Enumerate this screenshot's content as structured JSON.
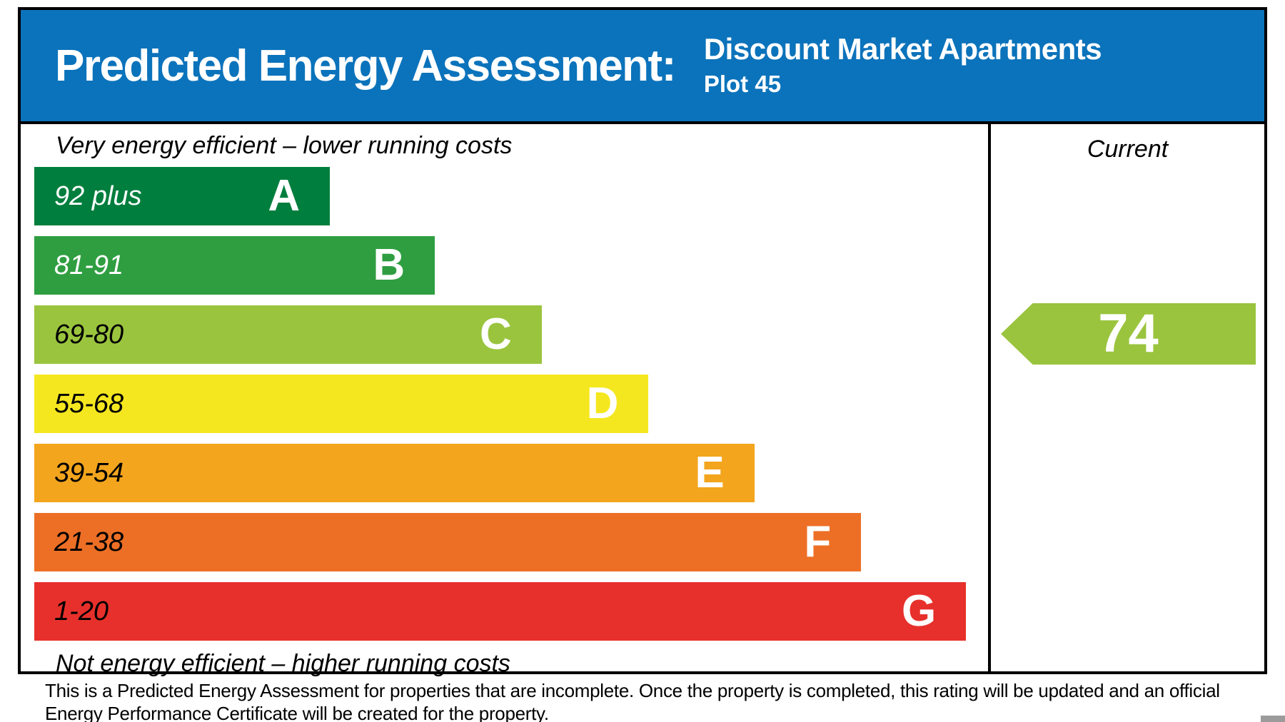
{
  "header": {
    "title": "Predicted Energy Assessment:",
    "property_name": "Discount Market Apartments",
    "plot": "Plot 45",
    "background": "#0b73bb"
  },
  "chart_data": {
    "type": "bar",
    "title": "Predicted Energy Assessment",
    "top_label": "Very energy efficient – lower running costs",
    "bottom_label": "Not energy efficient – higher running costs",
    "column_header": "Current",
    "current_rating": "74",
    "current_band": "C",
    "current_color": "#9ac43e",
    "rating_scale_min": 1,
    "rating_scale_max": 100,
    "bands": [
      {
        "letter": "A",
        "range": "92 plus",
        "color": "#007e3d",
        "range_text_color": "#ffffff",
        "width_pct": 31.0
      },
      {
        "letter": "B",
        "range": "81-91",
        "color": "#2f9e41",
        "range_text_color": "#ffffff",
        "width_pct": 42.0
      },
      {
        "letter": "C",
        "range": "69-80",
        "color": "#9ac43e",
        "range_text_color": "#000000",
        "width_pct": 53.2
      },
      {
        "letter": "D",
        "range": "55-68",
        "color": "#f5e71f",
        "range_text_color": "#000000",
        "width_pct": 64.4
      },
      {
        "letter": "E",
        "range": "39-54",
        "color": "#f3a51d",
        "range_text_color": "#000000",
        "width_pct": 75.5
      },
      {
        "letter": "F",
        "range": "21-38",
        "color": "#ed6f25",
        "range_text_color": "#000000",
        "width_pct": 86.7
      },
      {
        "letter": "G",
        "range": "1-20",
        "color": "#e7302b",
        "range_text_color": "#000000",
        "width_pct": 97.7
      }
    ]
  },
  "footer": {
    "note": "This is a Predicted Energy Assessment for properties that are incomplete. Once the property is completed, this rating will be updated and an official Energy Performance Certificate will be created for the property."
  }
}
